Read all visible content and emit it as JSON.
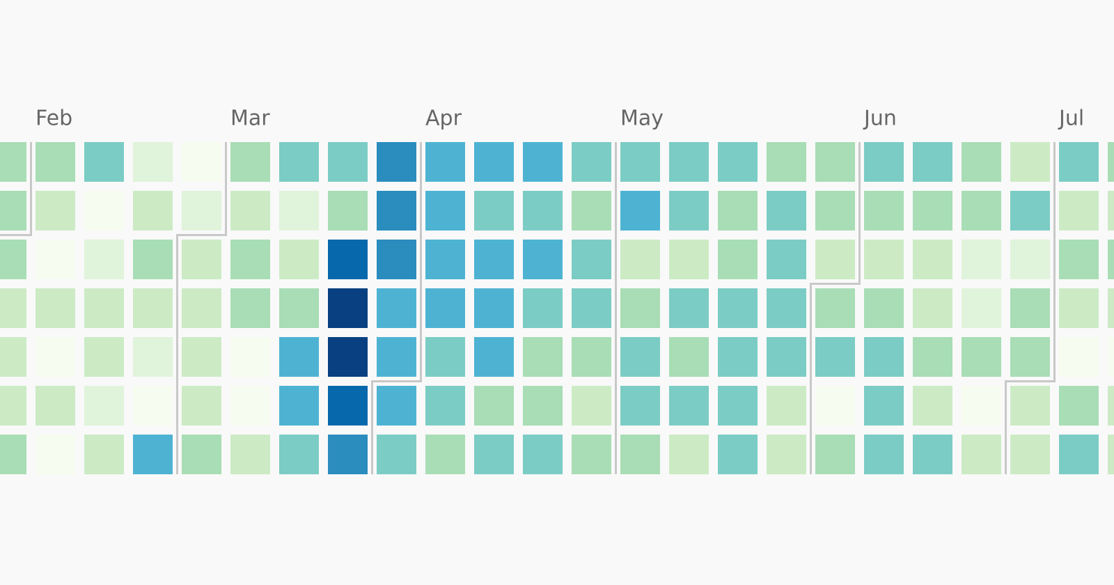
{
  "chart_data": {
    "type": "calendar-heatmap",
    "categories": [
      null,
      "Feb",
      null,
      null,
      null,
      "Mar",
      null,
      null,
      null,
      "Apr",
      null,
      null,
      null,
      "May",
      null,
      null,
      null,
      null,
      "Jun",
      null,
      null,
      null,
      "Jul",
      null
    ],
    "colors": [
      "#f7fcf0",
      "#e0f3db",
      "#ccebc5",
      "#a8ddb5",
      "#7bccc4",
      "#4eb3d3",
      "#2b8cbe",
      "#0868ac",
      "#084081"
    ],
    "values": [
      [
        3,
        3,
        3,
        2,
        2,
        2,
        3
      ],
      [
        3,
        2,
        0,
        2,
        0,
        2,
        0
      ],
      [
        4,
        0,
        1,
        2,
        2,
        1,
        2
      ],
      [
        1,
        2,
        3,
        2,
        1,
        0,
        5
      ],
      [
        0,
        1,
        2,
        2,
        2,
        2,
        3
      ],
      [
        3,
        2,
        3,
        3,
        0,
        0,
        2
      ],
      [
        4,
        1,
        2,
        3,
        5,
        5,
        4
      ],
      [
        4,
        3,
        7,
        8,
        8,
        7,
        6
      ],
      [
        6,
        6,
        6,
        5,
        5,
        5,
        4
      ],
      [
        5,
        5,
        5,
        5,
        4,
        4,
        3
      ],
      [
        5,
        4,
        5,
        5,
        5,
        3,
        4
      ],
      [
        5,
        4,
        5,
        4,
        3,
        3,
        4
      ],
      [
        4,
        3,
        4,
        4,
        3,
        2,
        3
      ],
      [
        4,
        5,
        2,
        3,
        4,
        4,
        3
      ],
      [
        4,
        4,
        2,
        4,
        3,
        4,
        2
      ],
      [
        4,
        3,
        3,
        4,
        4,
        4,
        4
      ],
      [
        3,
        4,
        4,
        4,
        4,
        2,
        2
      ],
      [
        3,
        3,
        2,
        3,
        4,
        0,
        3
      ],
      [
        4,
        3,
        2,
        3,
        4,
        4,
        4
      ],
      [
        4,
        3,
        2,
        2,
        3,
        2,
        4
      ],
      [
        3,
        3,
        1,
        1,
        3,
        0,
        2
      ],
      [
        2,
        4,
        1,
        3,
        3,
        2,
        2
      ],
      [
        4,
        2,
        3,
        2,
        0,
        3,
        4
      ],
      [
        3,
        2,
        3,
        2,
        0,
        2,
        2
      ]
    ]
  }
}
